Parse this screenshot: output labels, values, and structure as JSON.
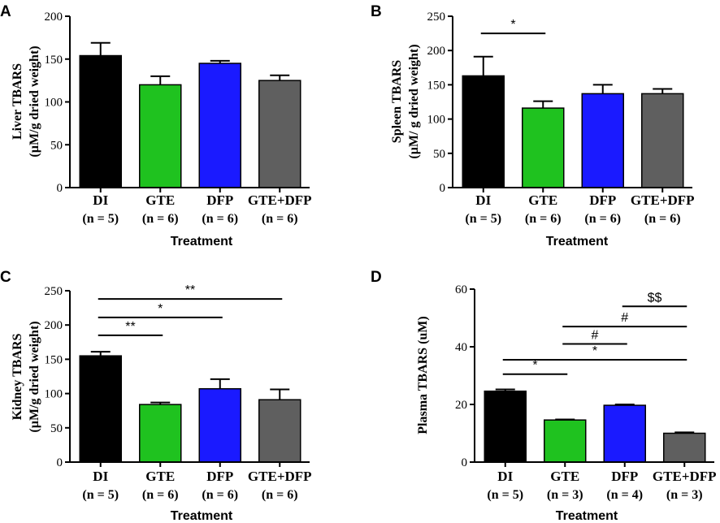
{
  "chart_data": [
    {
      "type": "bar",
      "panel": "A",
      "ylabel_lines": [
        "Liver TBARS",
        "(µM/g dried weight)"
      ],
      "xlabel": "Treatment",
      "ylim": [
        0,
        200
      ],
      "yticks": [
        0,
        50,
        100,
        150,
        200
      ],
      "categories": [
        "DI",
        "GTE",
        "DFP",
        "GTE+DFP"
      ],
      "n_labels": [
        "(n = 5)",
        "(n = 6)",
        "(n = 6)",
        "(n = 6)"
      ],
      "values": [
        154,
        120,
        145,
        125
      ],
      "errors": [
        15,
        10,
        3,
        6
      ],
      "colors": [
        "#000000",
        "#1fc21f",
        "#1a1aff",
        "#5f5f5f"
      ],
      "significance": []
    },
    {
      "type": "bar",
      "panel": "B",
      "ylabel_lines": [
        "Spleen TBARS",
        "(µM/ g dried weight)"
      ],
      "xlabel": "Treatment",
      "ylim": [
        0,
        250
      ],
      "yticks": [
        0,
        50,
        100,
        150,
        200,
        250
      ],
      "categories": [
        "DI",
        "GTE",
        "DFP",
        "GTE+DFP"
      ],
      "n_labels": [
        "(n = 5)",
        "(n = 6)",
        "(n = 6)",
        "(n = 6)"
      ],
      "values": [
        163,
        116,
        137,
        137
      ],
      "errors": [
        28,
        10,
        13,
        7
      ],
      "colors": [
        "#000000",
        "#1fc21f",
        "#1a1aff",
        "#5f5f5f"
      ],
      "significance": [
        {
          "from": 0,
          "to": 1,
          "label": "*",
          "y": 225
        }
      ]
    },
    {
      "type": "bar",
      "panel": "C",
      "ylabel_lines": [
        "Kidney TBARS",
        "(µM/g dried weight)"
      ],
      "xlabel": "Treatment",
      "ylim": [
        0,
        250
      ],
      "yticks": [
        0,
        50,
        100,
        150,
        200,
        250
      ],
      "categories": [
        "DI",
        "GTE",
        "DFP",
        "GTE+DFP"
      ],
      "n_labels": [
        "(n = 5)",
        "(n = 6)",
        "(n = 6)",
        "(n = 6)"
      ],
      "values": [
        155,
        84,
        107,
        91
      ],
      "errors": [
        6,
        3,
        14,
        15
      ],
      "colors": [
        "#000000",
        "#1fc21f",
        "#1a1aff",
        "#5f5f5f"
      ],
      "significance": [
        {
          "from": 0,
          "to": 1,
          "label": "**",
          "y": 185
        },
        {
          "from": 0,
          "to": 2,
          "label": "*",
          "y": 211
        },
        {
          "from": 0,
          "to": 3,
          "label": "**",
          "y": 238
        }
      ]
    },
    {
      "type": "bar",
      "panel": "D",
      "ylabel_lines": [
        "Plasma TBARS (uM)"
      ],
      "xlabel": "Treatment",
      "ylim": [
        0,
        60
      ],
      "yticks": [
        0,
        20,
        40,
        60
      ],
      "categories": [
        "DI",
        "GTE",
        "DFP",
        "GTE+DFP"
      ],
      "n_labels": [
        "(n = 5)",
        "(n = 3)",
        "(n = 4)",
        "(n = 3)"
      ],
      "values": [
        24.6,
        14.6,
        19.7,
        10.0
      ],
      "errors": [
        0.6,
        0.2,
        0.3,
        0.3
      ],
      "colors": [
        "#000000",
        "#1fc21f",
        "#1a1aff",
        "#5f5f5f"
      ],
      "significance": [
        {
          "from": 0,
          "to": 1,
          "label": "*",
          "y": 30.5
        },
        {
          "from": 0,
          "to": 3,
          "label": "*",
          "y": 35.5
        },
        {
          "from": 1,
          "to": 2,
          "label": "#",
          "y": 41
        },
        {
          "from": 1,
          "to": 3,
          "label": "#",
          "y": 47
        },
        {
          "from": 2,
          "to": 3,
          "label": "$$",
          "y": 54
        }
      ]
    }
  ]
}
